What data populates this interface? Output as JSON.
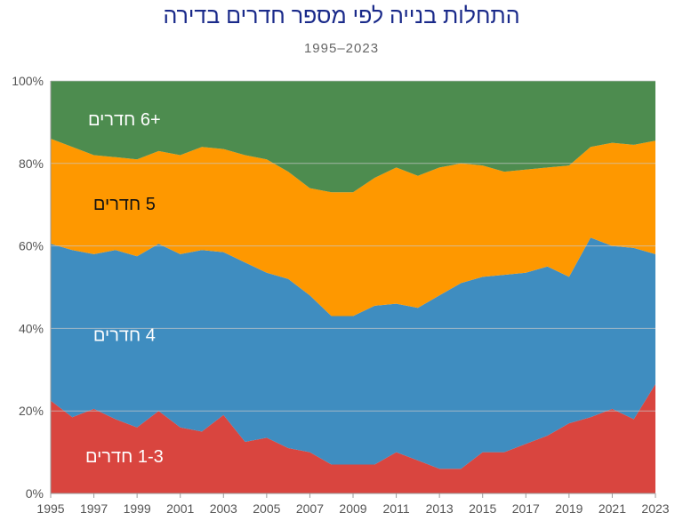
{
  "chart_data": {
    "type": "area",
    "stacked": true,
    "normalized": true,
    "title": "התחלות בנייה לפי מספר חדרים בדירה",
    "subtitle": "1995–2023",
    "x": [
      1995,
      1996,
      1997,
      1998,
      1999,
      2000,
      2001,
      2002,
      2003,
      2004,
      2005,
      2006,
      2007,
      2008,
      2009,
      2010,
      2011,
      2012,
      2013,
      2014,
      2015,
      2016,
      2017,
      2018,
      2019,
      2020,
      2021,
      2022,
      2023
    ],
    "x_tick_labels": [
      "1995",
      "1997",
      "1999",
      "2001",
      "2003",
      "2005",
      "2007",
      "2009",
      "2011",
      "2013",
      "2015",
      "2017",
      "2019",
      "2021",
      "2023"
    ],
    "y_tick_labels": [
      "0%",
      "20%",
      "40%",
      "60%",
      "80%",
      "100%"
    ],
    "ylim": [
      0,
      100
    ],
    "legend": "inline-labels",
    "series": [
      {
        "name": "1-3 חדרים",
        "color": "#d9453f",
        "label_color": "#ffffff",
        "values": [
          22.5,
          18.5,
          20.5,
          18,
          16,
          20,
          16,
          15,
          19,
          12.5,
          13.5,
          11,
          10,
          7,
          7,
          7,
          10,
          8,
          6,
          6,
          10,
          10,
          12,
          14,
          17,
          18.5,
          20.5,
          18,
          26.5
        ]
      },
      {
        "name": "4 חדרים",
        "color": "#3f8dc0",
        "label_color": "#ffffff",
        "values": [
          38,
          40.5,
          37.5,
          41,
          41.5,
          40.5,
          42,
          44,
          39.5,
          43.5,
          40,
          41,
          38,
          36,
          36,
          38.5,
          36,
          37,
          42,
          45,
          42.5,
          43,
          41.5,
          41,
          35.5,
          43.5,
          39.5,
          41.5,
          31.5
        ]
      },
      {
        "name": "5 חדרים",
        "color": "#fe9800",
        "label_color": "#111111",
        "values": [
          25.5,
          25,
          24,
          22.5,
          23.5,
          22.5,
          24,
          25,
          25,
          26,
          27.5,
          26,
          26,
          30,
          30,
          31,
          33,
          32,
          31,
          29,
          27,
          25,
          25,
          24,
          27,
          22,
          25,
          25,
          27.5
        ]
      },
      {
        "name": "+6 חדרים",
        "color": "#4d8c4f",
        "label_color": "#ffffff",
        "values": [
          14,
          16,
          18,
          18.5,
          19,
          17,
          18,
          16,
          16.5,
          18,
          19,
          22,
          26,
          27,
          27,
          23.5,
          21,
          23,
          21,
          20,
          20.5,
          22,
          21.5,
          21,
          20.5,
          16,
          15,
          15.5,
          14.5
        ]
      }
    ],
    "colors": {
      "grid": "#c9c9c9",
      "axis": "#9a9a9a",
      "title": "#1a2a8a"
    }
  }
}
